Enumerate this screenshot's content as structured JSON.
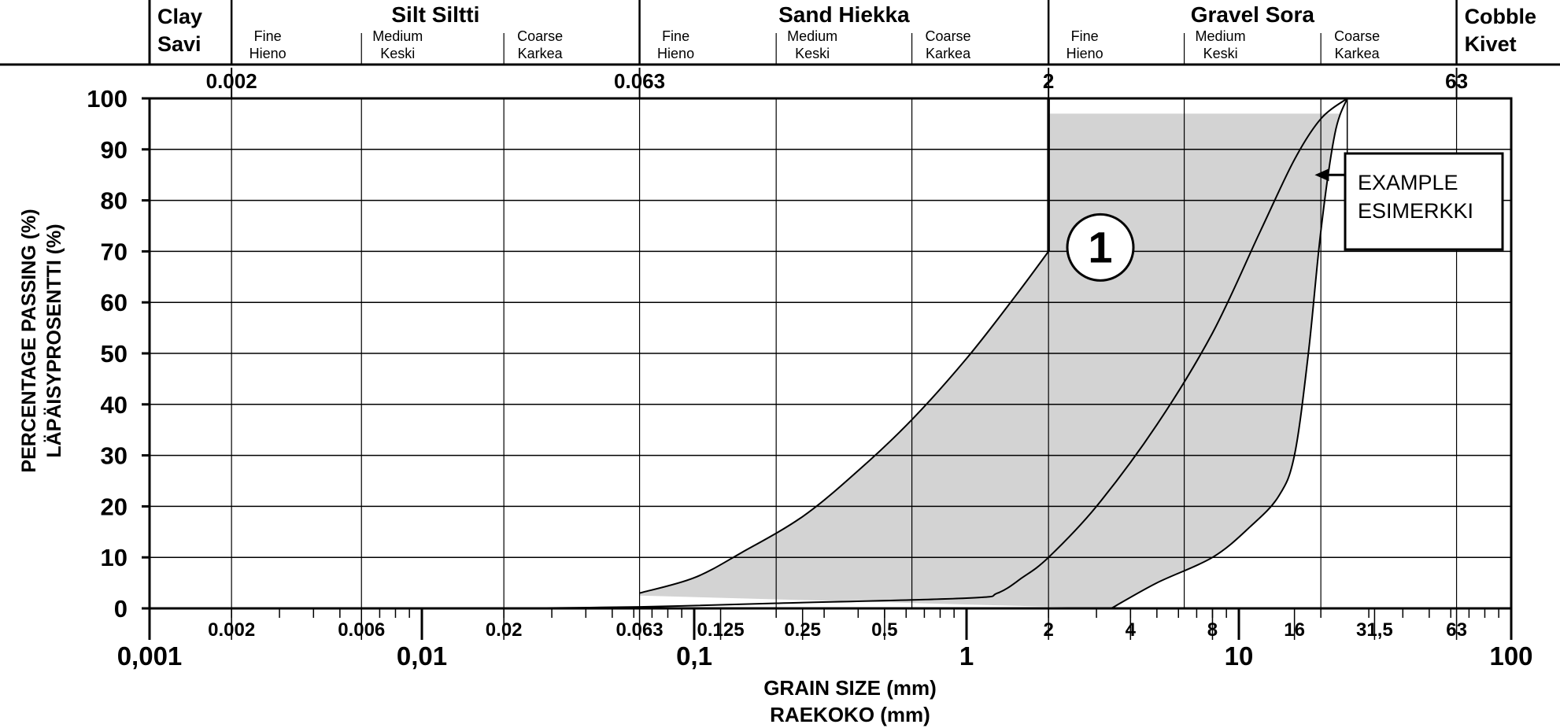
{
  "chart_data": {
    "type": "area",
    "x_scale": "log",
    "xlim": [
      0.001,
      100
    ],
    "ylim": [
      0,
      100
    ],
    "grid": true,
    "xlabel": [
      "GRAIN SIZE (mm)",
      "RAEKOKO (mm)"
    ],
    "ylabel": [
      "PERCENTAGE PASSING (%)",
      "LÄPÄISYPROSENTTI (%)"
    ],
    "y_ticks": [
      0,
      10,
      20,
      30,
      40,
      50,
      60,
      70,
      80,
      90,
      100
    ],
    "x_major_ticks": [
      {
        "value": 0.001,
        "label": "0,001"
      },
      {
        "value": 0.01,
        "label": "0,01"
      },
      {
        "value": 0.1,
        "label": "0,1"
      },
      {
        "value": 1,
        "label": "1"
      },
      {
        "value": 10,
        "label": "10"
      },
      {
        "value": 100,
        "label": "100"
      }
    ],
    "x_minor_labels": [
      {
        "value": 0.002,
        "label": "0.002"
      },
      {
        "value": 0.006,
        "label": "0.006"
      },
      {
        "value": 0.02,
        "label": "0.02"
      },
      {
        "value": 0.063,
        "label": "0.063"
      },
      {
        "value": 0.125,
        "label": "0.125"
      },
      {
        "value": 0.25,
        "label": "0.25"
      },
      {
        "value": 0.5,
        "label": "0.5"
      },
      {
        "value": 2,
        "label": "2"
      },
      {
        "value": 4,
        "label": "4"
      },
      {
        "value": 8,
        "label": "8"
      },
      {
        "value": 16,
        "label": "16"
      },
      {
        "value": 31.5,
        "label": "31,5"
      },
      {
        "value": 63,
        "label": "63"
      }
    ],
    "top_boundary_labels": [
      {
        "value": 0.002,
        "label": "0.002"
      },
      {
        "value": 0.063,
        "label": "0.063"
      },
      {
        "value": 2,
        "label": "2"
      },
      {
        "value": 63,
        "label": "63"
      }
    ],
    "soil_classes": [
      {
        "from": 0.001,
        "to": 0.002,
        "name": "Clay",
        "name_fi": "Savi",
        "subclasses": []
      },
      {
        "from": 0.002,
        "to": 0.063,
        "name": "Silt  Siltti",
        "subclasses": [
          {
            "from": 0.002,
            "to": 0.006,
            "name": "Fine",
            "name_fi": "Hieno"
          },
          {
            "from": 0.006,
            "to": 0.02,
            "name": "Medium",
            "name_fi": "Keski"
          },
          {
            "from": 0.02,
            "to": 0.063,
            "name": "Coarse",
            "name_fi": "Karkea"
          }
        ]
      },
      {
        "from": 0.063,
        "to": 2,
        "name": "Sand  Hiekka",
        "subclasses": [
          {
            "from": 0.063,
            "to": 0.2,
            "name": "Fine",
            "name_fi": "Hieno"
          },
          {
            "from": 0.2,
            "to": 0.63,
            "name": "Medium",
            "name_fi": "Keski"
          },
          {
            "from": 0.63,
            "to": 2,
            "name": "Coarse",
            "name_fi": "Karkea"
          }
        ]
      },
      {
        "from": 2,
        "to": 63,
        "name": "Gravel  Sora",
        "subclasses": [
          {
            "from": 2,
            "to": 6.3,
            "name": "Fine",
            "name_fi": "Hieno"
          },
          {
            "from": 6.3,
            "to": 20,
            "name": "Medium",
            "name_fi": "Keski"
          },
          {
            "from": 20,
            "to": 63,
            "name": "Coarse",
            "name_fi": "Karkea"
          }
        ]
      },
      {
        "from": 63,
        "to": 100,
        "name": "Cobble",
        "name_fi": "Kivet",
        "subclasses": []
      }
    ],
    "series": [
      {
        "role": "envelope-fine-limit",
        "x": [
          0.063,
          0.1,
          0.15,
          0.25,
          0.4,
          0.63,
          1,
          1.5,
          2
        ],
        "y": [
          3,
          6,
          11,
          18,
          27,
          37,
          49,
          61,
          70
        ]
      },
      {
        "role": "envelope-coarse-limit",
        "x": [
          3.4,
          5,
          8,
          11,
          14,
          16,
          18,
          20,
          22.5,
          25
        ],
        "y": [
          0,
          5,
          10,
          16,
          22,
          30,
          50,
          74,
          93,
          100
        ]
      },
      {
        "name": "EXAMPLE ESIMERKKI",
        "x": [
          0.02,
          0.063,
          0.2,
          1,
          1.3,
          1.6,
          2,
          3,
          5,
          8,
          12,
          16,
          20,
          25
        ],
        "y": [
          0,
          0.3,
          1,
          2,
          3,
          6,
          10,
          20,
          36,
          54,
          74,
          88,
          96,
          100
        ]
      }
    ],
    "shaded_region": {
      "x_upper_limit": 2,
      "x_max": 25,
      "y_max": 97,
      "y_min": 2.5
    },
    "vertical_marker": {
      "x": 2,
      "y_from": 70,
      "y_to": 100
    },
    "annotations": [
      {
        "text": "1",
        "style": "circled",
        "x": 3.1,
        "y": 70
      },
      {
        "text": "EXAMPLE\nESIMERKKI",
        "style": "boxed",
        "arrow_to": {
          "x": 19,
          "y": 85
        }
      }
    ]
  }
}
